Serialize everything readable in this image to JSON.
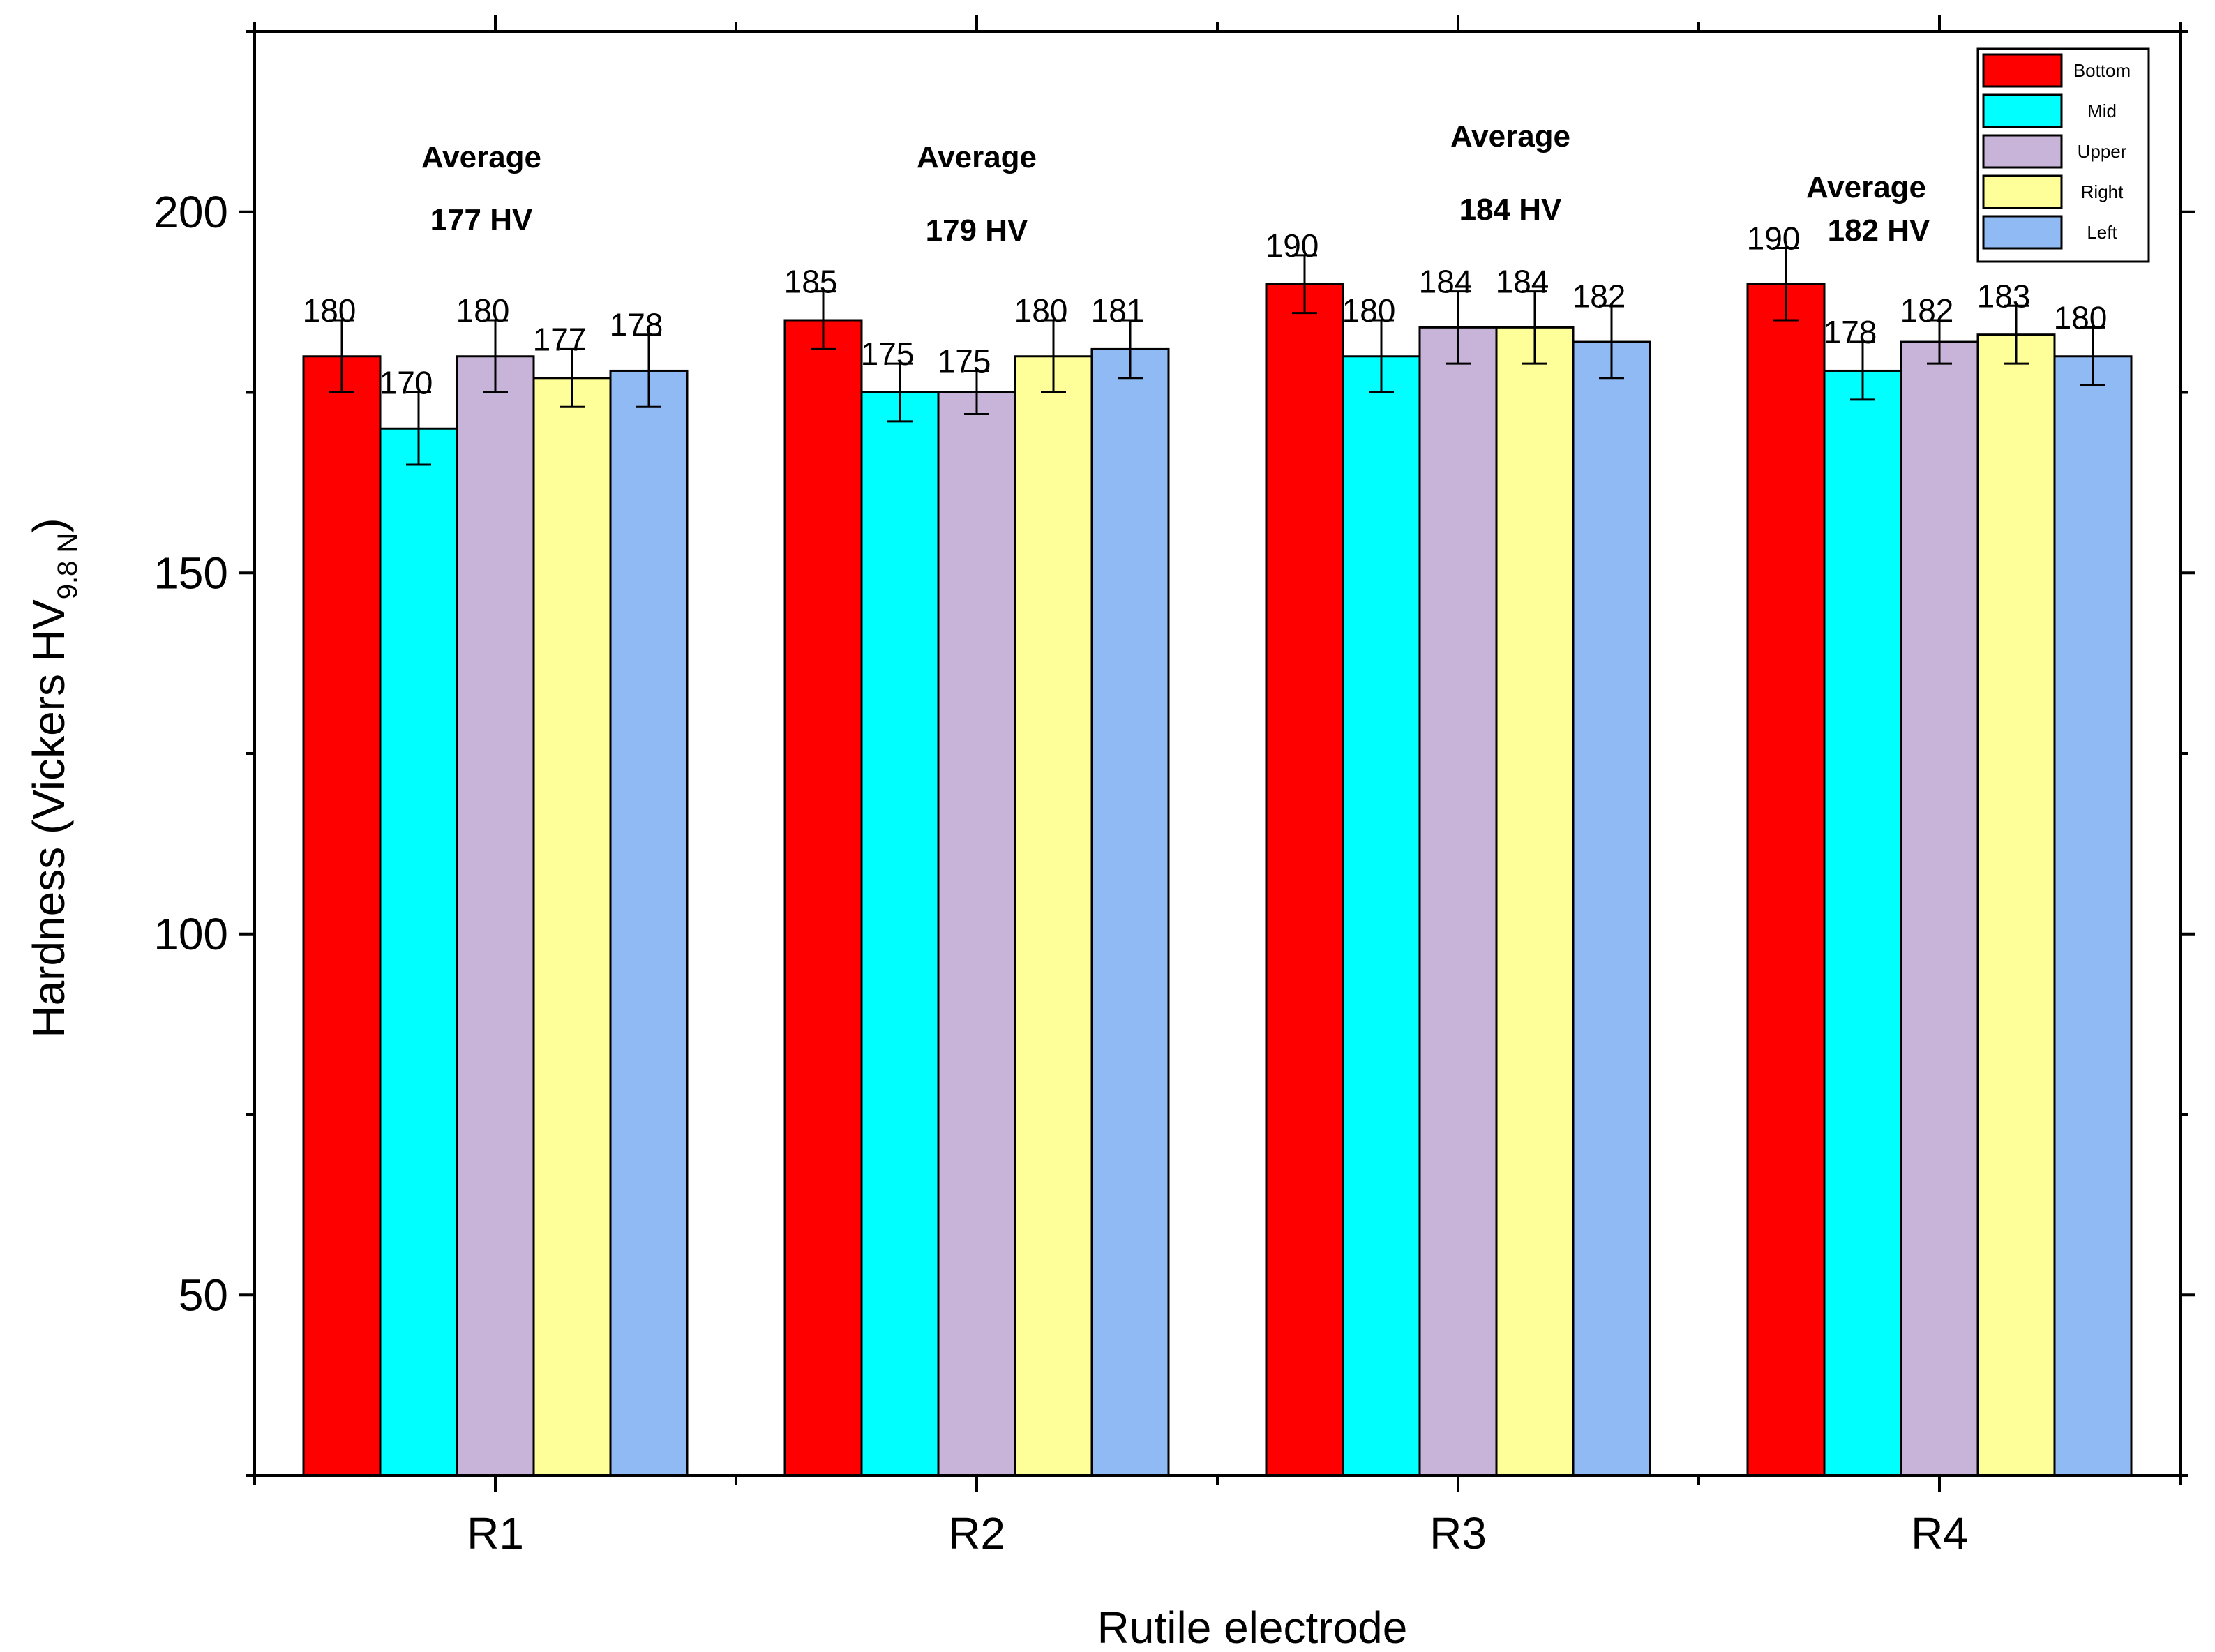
{
  "chart_data": {
    "type": "bar",
    "title": "",
    "xlabel": "Rutile electrode",
    "ylabel": "Hardness (Vickers HV",
    "ylabel_subscript": "9.8 N",
    "ylabel_close": ")",
    "ylim": [
      25,
      225
    ],
    "yticks": [
      50,
      100,
      150,
      200
    ],
    "categories": [
      "R1",
      "R2",
      "R3",
      "R4"
    ],
    "series": [
      {
        "name": "Bottom",
        "color": "#ff0000",
        "values": [
          180,
          185,
          190,
          190
        ],
        "errors": [
          5,
          4,
          4,
          5
        ]
      },
      {
        "name": "Mid",
        "color": "#00ffff",
        "values": [
          170,
          175,
          180,
          178
        ],
        "errors": [
          5,
          4,
          5,
          4
        ]
      },
      {
        "name": "Upper",
        "color": "#c8b4d8",
        "values": [
          180,
          175,
          184,
          182
        ],
        "errors": [
          5,
          3,
          5,
          3
        ]
      },
      {
        "name": "Right",
        "color": "#ffff99",
        "values": [
          177,
          180,
          184,
          183
        ],
        "errors": [
          4,
          5,
          5,
          4
        ]
      },
      {
        "name": "Left",
        "color": "#8fbaf3",
        "values": [
          178,
          181,
          182,
          180
        ],
        "errors": [
          5,
          4,
          5,
          4
        ]
      }
    ],
    "averages": [
      {
        "title": "Average",
        "value": "177 HV"
      },
      {
        "title": "Average",
        "value": "179 HV"
      },
      {
        "title": "Average",
        "value": "184 HV"
      },
      {
        "title": "Average",
        "value": "182 HV"
      }
    ],
    "legend_position": "top-right",
    "grid": false
  }
}
